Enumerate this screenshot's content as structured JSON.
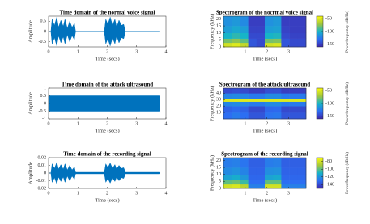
{
  "chart_data": [
    {
      "type": "area",
      "title": "Time domain of the normal voice signal",
      "xlabel": "Time (secs)",
      "ylabel": "Amplitude",
      "color": "#0072bd",
      "x": [
        0,
        0.08,
        0.12,
        0.2,
        0.28,
        0.34,
        0.42,
        0.5,
        0.56,
        0.64,
        0.72,
        0.8,
        0.88,
        0.92,
        1.9,
        1.95,
        2.02,
        2.1,
        2.18,
        2.26,
        2.32,
        2.4,
        2.48,
        2.56,
        2.62,
        3.8
      ],
      "values": [
        0,
        0,
        0.6,
        0.3,
        0.7,
        0.2,
        0.55,
        0.25,
        0.6,
        0.15,
        0.5,
        0.2,
        0.4,
        0,
        0,
        0.6,
        0.35,
        0.7,
        0.3,
        0.6,
        0.2,
        0.55,
        0.3,
        0.35,
        0,
        0
      ],
      "xlim": [
        0,
        4
      ],
      "xticks": [
        0,
        1,
        2,
        3,
        4
      ],
      "ylim": [
        -0.75,
        0.75
      ],
      "yticks": [
        -0.5,
        0,
        0.5
      ]
    },
    {
      "type": "heatmap",
      "title": "Spectrogram of the nocrmal voice signal",
      "xlabel": "Time (secs)",
      "ylabel": "Frequency (kHz)",
      "colorbar_label": "Power/frequency (dB/Hz)",
      "xbins": [
        0,
        0.38,
        0.76,
        1.14,
        1.52,
        1.9,
        2.28,
        2.66,
        3.04,
        3.42,
        3.8
      ],
      "ybins": [
        0,
        3,
        6,
        10,
        15,
        22
      ],
      "z": [
        [
          -55,
          -50,
          -60,
          -140,
          -145,
          -55,
          -52,
          -140,
          -145,
          -145
        ],
        [
          -80,
          -75,
          -85,
          -140,
          -145,
          -80,
          -78,
          -140,
          -145,
          -145
        ],
        [
          -100,
          -95,
          -100,
          -145,
          -145,
          -100,
          -98,
          -145,
          -148,
          -148
        ],
        [
          -110,
          -105,
          -110,
          -148,
          -148,
          -110,
          -108,
          -148,
          -150,
          -150
        ],
        [
          -115,
          -112,
          -118,
          -150,
          -150,
          -115,
          -112,
          -150,
          -150,
          -150
        ]
      ],
      "xlim": [
        0,
        3.8
      ],
      "xticks": [
        1,
        2,
        3
      ],
      "ylim": [
        0,
        22
      ],
      "yticks": [
        0,
        5,
        10,
        15,
        20
      ],
      "clim": [
        -160,
        -40
      ],
      "cticks": [
        -150,
        -100,
        -50
      ]
    },
    {
      "type": "area",
      "title": "Time domain of the attack ultrasound",
      "xlabel": "Time (secs)",
      "ylabel": "Amplitude",
      "color": "#0072bd",
      "x": [
        0,
        3.8
      ],
      "values": [
        0.5,
        0.5
      ],
      "xlim": [
        0,
        4
      ],
      "xticks": [
        0,
        1,
        2,
        3,
        4
      ],
      "ylim": [
        -1,
        1
      ],
      "yticks": [
        -1,
        -0.5,
        0,
        0.5,
        1
      ]
    },
    {
      "type": "heatmap",
      "title": "Spectrogram of the attack ultrasound",
      "xlabel": "Time (secs)",
      "ylabel": "Frequency (kHz)",
      "colorbar_label": "Power/frequency (dB/Hz)",
      "xbins": [
        0,
        0.38,
        0.76,
        1.14,
        1.52,
        1.9,
        2.28,
        2.66,
        3.04,
        3.42,
        3.8
      ],
      "ybins": [
        0,
        10,
        20,
        27,
        31,
        40,
        48
      ],
      "z": [
        [
          -130,
          -125,
          -130,
          -140,
          -140,
          -128,
          -126,
          -140,
          -140,
          -140
        ],
        [
          -135,
          -132,
          -135,
          -145,
          -145,
          -133,
          -132,
          -145,
          -145,
          -145
        ],
        [
          -120,
          -118,
          -120,
          -125,
          -125,
          -118,
          -118,
          -125,
          -125,
          -125
        ],
        [
          -50,
          -50,
          -50,
          -50,
          -50,
          -50,
          -50,
          -50,
          -50,
          -50
        ],
        [
          -120,
          -118,
          -120,
          -125,
          -125,
          -118,
          -118,
          -125,
          -125,
          -125
        ],
        [
          -145,
          -143,
          -145,
          -150,
          -150,
          -143,
          -143,
          -150,
          -150,
          -150
        ]
      ],
      "xlim": [
        0,
        3.8
      ],
      "xticks": [
        1,
        2,
        3
      ],
      "ylim": [
        0,
        48
      ],
      "yticks": [
        10,
        20,
        30,
        40
      ],
      "clim": [
        -160,
        -40
      ],
      "cticks": [
        -150,
        -100,
        -50
      ]
    },
    {
      "type": "area",
      "title": "Time domain of the recording signal",
      "xlabel": "Time (secs)",
      "ylabel": "Amplitude",
      "color": "#0072bd",
      "x": [
        0,
        0.08,
        0.12,
        0.2,
        0.28,
        0.34,
        0.42,
        0.5,
        0.56,
        0.64,
        0.72,
        0.8,
        0.88,
        0.92,
        1.9,
        1.95,
        2.02,
        2.1,
        2.18,
        2.26,
        2.32,
        2.4,
        2.48,
        2.56,
        2.62,
        3.8
      ],
      "values": [
        0,
        0,
        0.012,
        0.006,
        0.014,
        0.005,
        0.011,
        0.005,
        0.012,
        0.004,
        0.01,
        0.004,
        0.008,
        0.001,
        0.001,
        0.012,
        0.007,
        0.013,
        0.006,
        0.011,
        0.005,
        0.01,
        0.006,
        0.007,
        0.001,
        0.001
      ],
      "xlim": [
        0,
        4
      ],
      "xticks": [
        0,
        1,
        2,
        3,
        4
      ],
      "ylim": [
        -0.02,
        0.02
      ],
      "yticks": [
        -0.02,
        -0.01,
        0,
        0.01,
        0.02
      ]
    },
    {
      "type": "heatmap",
      "title": "Spectrogram of the recording signal",
      "xlabel": "Time (secs)",
      "ylabel": "Frequency (kHz)",
      "colorbar_label": "Power/frequency (dB/Hz)",
      "xbins": [
        0,
        0.38,
        0.76,
        1.14,
        1.52,
        1.9,
        2.28,
        2.66,
        3.04,
        3.42,
        3.8
      ],
      "ybins": [
        0,
        3,
        6,
        10,
        15,
        22
      ],
      "z": [
        [
          -80,
          -78,
          -85,
          -125,
          -125,
          -80,
          -80,
          -125,
          -125,
          -125
        ],
        [
          -100,
          -98,
          -105,
          -130,
          -130,
          -100,
          -100,
          -130,
          -130,
          -130
        ],
        [
          -115,
          -112,
          -118,
          -132,
          -132,
          -115,
          -113,
          -132,
          -132,
          -132
        ],
        [
          -122,
          -120,
          -124,
          -133,
          -133,
          -121,
          -120,
          -133,
          -133,
          -133
        ],
        [
          -126,
          -125,
          -128,
          -134,
          -134,
          -126,
          -125,
          -134,
          -134,
          -134
        ]
      ],
      "xlim": [
        0,
        3.8
      ],
      "xticks": [
        1,
        2,
        3
      ],
      "ylim": [
        0,
        22
      ],
      "yticks": [
        0,
        5,
        10,
        15,
        20
      ],
      "clim": [
        -150,
        -70
      ],
      "cticks": [
        -140,
        -120,
        -100,
        -80
      ]
    }
  ]
}
